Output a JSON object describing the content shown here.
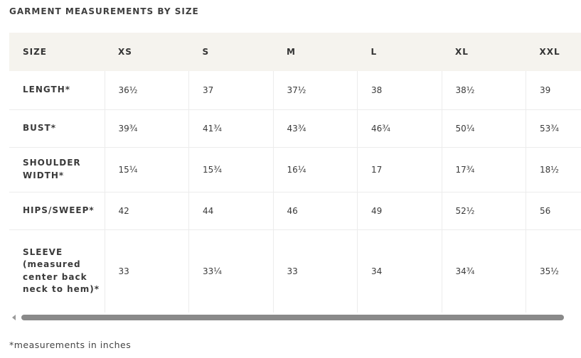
{
  "title": "GARMENT MEASUREMENTS BY SIZE",
  "table": {
    "header": [
      "SIZE",
      "XS",
      "S",
      "M",
      "L",
      "XL",
      "XXL"
    ],
    "rows": [
      {
        "label": "LENGTH*",
        "values": [
          "36½",
          "37",
          "37½",
          "38",
          "38½",
          "39"
        ]
      },
      {
        "label": "BUST*",
        "values": [
          "39¾",
          "41¾",
          "43¾",
          "46¾",
          "50¼",
          "53¾"
        ]
      },
      {
        "label": "SHOULDER WIDTH*",
        "values": [
          "15¼",
          "15¾",
          "16¼",
          "17",
          "17¾",
          "18½"
        ]
      },
      {
        "label": "HIPS/SWEEP*",
        "values": [
          "42",
          "44",
          "46",
          "49",
          "52½",
          "56"
        ]
      },
      {
        "label": "SLEEVE (measured center back neck to hem)*",
        "values": [
          "33",
          "33¼",
          "33",
          "34",
          "34¾",
          "35½"
        ]
      }
    ]
  },
  "scrollbar": {
    "position": 0.0
  },
  "footnote": "*measurements in inches"
}
